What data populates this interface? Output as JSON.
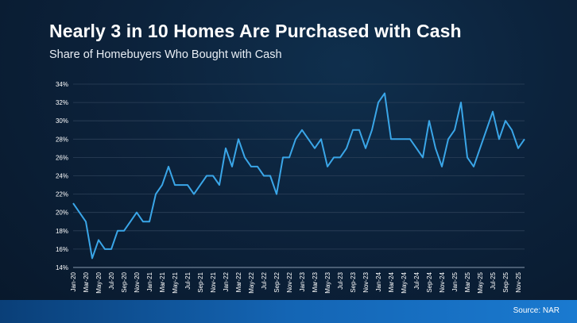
{
  "chart_data": {
    "type": "line",
    "title": "Nearly 3 in 10 Homes Are Purchased with Cash",
    "subtitle": "Share of Homebuyers Who Bought with Cash",
    "source": "Source: NAR",
    "xlabel": "",
    "ylabel": "",
    "ylim": [
      14,
      34
    ],
    "yticks": [
      "14%",
      "16%",
      "18%",
      "20%",
      "22%",
      "24%",
      "26%",
      "28%",
      "30%",
      "32%",
      "34%"
    ],
    "grid": true,
    "line_color": "#3aa6e8",
    "x_tick_labels": [
      "Jan-20",
      "Mar-20",
      "May-20",
      "Jul-20",
      "Sep-20",
      "Nov-20",
      "Jan-21",
      "Mar-21",
      "May-21",
      "Jul-21",
      "Sep-21",
      "Nov-21",
      "Jan-22",
      "Mar-22",
      "May-22",
      "Jul-22",
      "Sep-22",
      "Nov-22",
      "Jan-23",
      "Mar-23",
      "May-23",
      "Jul-23",
      "Sep-23",
      "Nov-23",
      "Jan-24",
      "Mar-24",
      "May-24",
      "Jul-24",
      "Sep-24",
      "Nov-24",
      "Jan-25",
      "Mar-25",
      "May-25",
      "Jul-25",
      "Sep-25",
      "Nov-25"
    ],
    "values": [
      21,
      20,
      19,
      15,
      17,
      16,
      16,
      18,
      18,
      19,
      20,
      19,
      19,
      22,
      23,
      25,
      23,
      23,
      23,
      22,
      23,
      24,
      24,
      23,
      27,
      25,
      28,
      26,
      25,
      25,
      24,
      24,
      22,
      26,
      26,
      28,
      29,
      28,
      27,
      28,
      25,
      26,
      26,
      27,
      29,
      29,
      27,
      29,
      32,
      33,
      28,
      28,
      28,
      28,
      27,
      26,
      30,
      27,
      25,
      28,
      29,
      32,
      26,
      25,
      27,
      29,
      31,
      28,
      30,
      29,
      27,
      28
    ]
  }
}
